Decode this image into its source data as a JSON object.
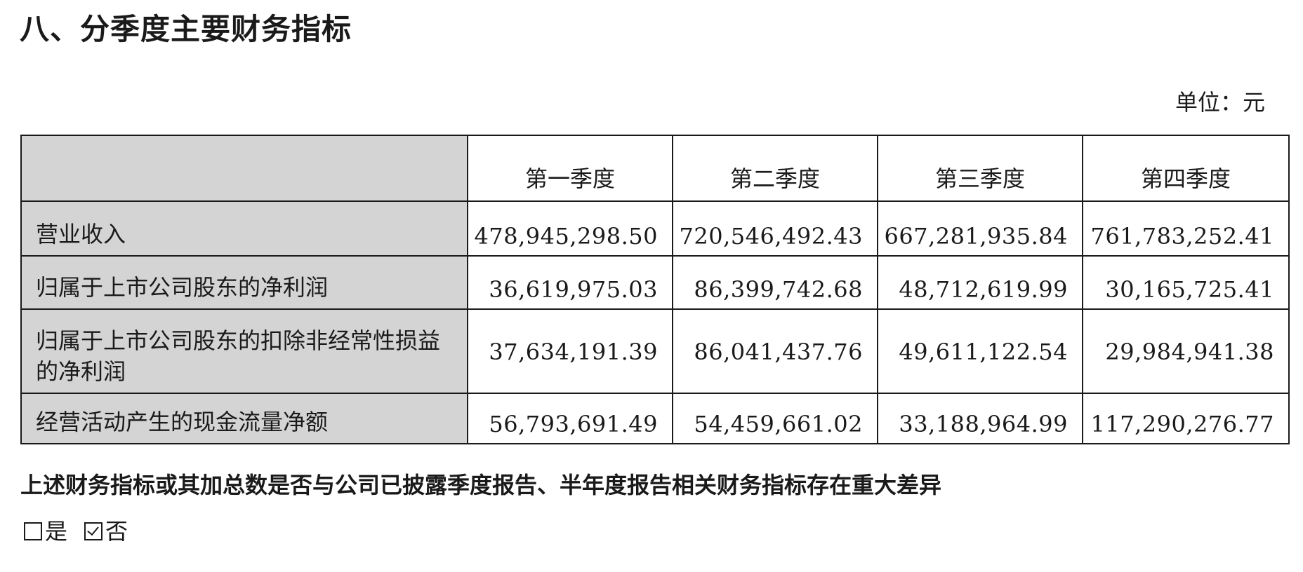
{
  "section_title": "八、分季度主要财务指标",
  "unit_label": "单位：元",
  "table": {
    "columns": [
      "",
      "第一季度",
      "第二季度",
      "第三季度",
      "第四季度"
    ],
    "rows": [
      {
        "label": "营业收入",
        "values": [
          "478,945,298.50",
          "720,546,492.43",
          "667,281,935.84",
          "761,783,252.41"
        ]
      },
      {
        "label": "归属于上市公司股东的净利润",
        "values": [
          "36,619,975.03",
          "86,399,742.68",
          "48,712,619.99",
          "30,165,725.41"
        ]
      },
      {
        "label": "归属于上市公司股东的扣除非经常性损益的净利润",
        "values": [
          "37,634,191.39",
          "86,041,437.76",
          "49,611,122.54",
          "29,984,941.38"
        ]
      },
      {
        "label": "经营活动产生的现金流量净额",
        "values": [
          "56,793,691.49",
          "54,459,661.02",
          "33,188,964.99",
          "117,290,276.77"
        ]
      }
    ]
  },
  "question": "上述财务指标或其加总数是否与公司已披露季度报告、半年度报告相关财务指标存在重大差异",
  "options": [
    {
      "label": "是",
      "checked": false
    },
    {
      "label": "否",
      "checked": true
    }
  ]
}
